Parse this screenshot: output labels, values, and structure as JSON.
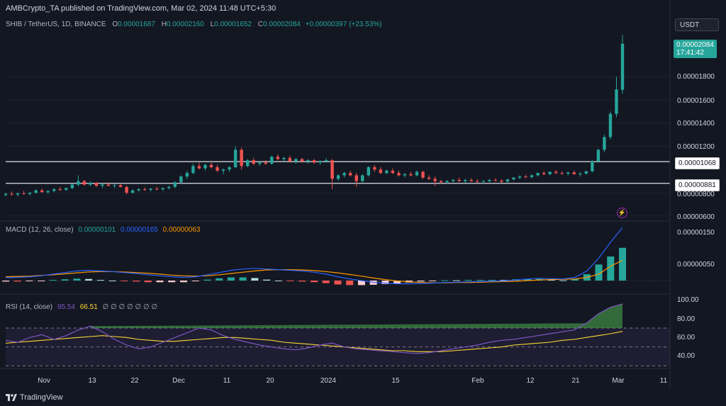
{
  "header": {
    "published": "AMBCrypto_TA published on TradingView.com, Mar 02, 2024 11:48 UTC+5:30",
    "symbol": "SHIB / TetherUS, 1D, BINANCE",
    "o_label": "O",
    "o": "0.00001687",
    "h_label": "H",
    "h": "0.00002160",
    "l_label": "L",
    "l": "0.00001652",
    "c_label": "C",
    "c": "0.00002084",
    "change": "+0.00000397 (+23.53%)",
    "currency": "USDT"
  },
  "price_tag": {
    "price": "0.00002084",
    "countdown": "17:41:42"
  },
  "levels": {
    "upper": "0.00001068",
    "lower": "0.00000881"
  },
  "macd_legend": {
    "name": "MACD (12, 26, close)",
    "v1": "0.00000101",
    "v2": "0.00000165",
    "v3": "0.00000063"
  },
  "rsi_legend": {
    "name": "RSI (14, close)",
    "v1": "95.54",
    "v2": "66.51",
    "rest": "∅ ∅ ∅ ∅ ∅ ∅ ∅"
  },
  "brand": "TradingView",
  "colors": {
    "up": "#26a69a",
    "down": "#ef5350",
    "bg": "#131722",
    "macd": "#2962ff",
    "signal": "#ff9800",
    "rsi": "#7e57c2",
    "rsi_ma": "#fdd835"
  },
  "chart_data": {
    "type": "candlestick",
    "price_ticks": [
      "0.00001800",
      "0.00001600",
      "0.00001400",
      "0.00001200",
      "0.00000800",
      "0.00000600"
    ],
    "price_tick_values": [
      1.8e-05,
      1.6e-05,
      1.4e-05,
      1.2e-05,
      8e-06,
      6e-06
    ],
    "macd_ticks": [
      "0.00000150",
      "0.00000050"
    ],
    "macd_tick_values": [
      1.5e-06,
      5e-07
    ],
    "rsi_ticks": [
      "100.00",
      "80.00",
      "60.00",
      "40.00"
    ],
    "rsi_tick_values": [
      100,
      80,
      60,
      40
    ],
    "x_ticks": [
      "Nov",
      "13",
      "22",
      "Dec",
      "11",
      "20",
      "2024",
      "15",
      "Feb",
      "12",
      "21",
      "Mar",
      "11"
    ],
    "candles": [
      [
        "0.00000780",
        "0.00000800",
        "0.00000770",
        "0.00000790"
      ],
      [
        "0.00000790",
        "0.00000810",
        "0.00000775",
        "0.00000785"
      ],
      [
        "0.00000785",
        "0.00000800",
        "0.00000770",
        "0.00000795"
      ],
      [
        "0.00000795",
        "0.00000815",
        "0.00000785",
        "0.00000790"
      ],
      [
        "0.00000790",
        "0.00000805",
        "0.00000775",
        "0.00000800"
      ],
      [
        "0.00000800",
        "0.00000830",
        "0.00000790",
        "0.00000820"
      ],
      [
        "0.00000820",
        "0.00000835",
        "0.00000800",
        "0.00000805"
      ],
      [
        "0.00000805",
        "0.00000820",
        "0.00000790",
        "0.00000815"
      ],
      [
        "0.00000815",
        "0.00000840",
        "0.00000805",
        "0.00000830"
      ],
      [
        "0.00000830",
        "0.00000850",
        "0.00000815",
        "0.00000825"
      ],
      [
        "0.00000825",
        "0.00000845",
        "0.00000815",
        "0.00000840"
      ],
      [
        "0.00000840",
        "0.00000880",
        "0.00000830",
        "0.00000870"
      ],
      [
        "0.00000870",
        "0.00000950",
        "0.00000855",
        "0.00000900"
      ],
      [
        "0.00000900",
        "0.00000910",
        "0.00000860",
        "0.00000870"
      ],
      [
        "0.00000870",
        "0.00000900",
        "0.00000855",
        "0.00000885"
      ],
      [
        "0.00000885",
        "0.00000895",
        "0.00000850",
        "0.00000860"
      ],
      [
        "0.00000860",
        "0.00000880",
        "0.00000840",
        "0.00000870"
      ],
      [
        "0.00000870",
        "0.00000890",
        "0.00000855",
        "0.00000860"
      ],
      [
        "0.00000860",
        "0.00000875",
        "0.00000840",
        "0.00000865"
      ],
      [
        "0.00000865",
        "0.00000880",
        "0.00000845",
        "0.00000850"
      ],
      [
        "0.00000850",
        "0.00000860",
        "0.00000785",
        "0.00000800"
      ],
      [
        "0.00000800",
        "0.00000830",
        "0.00000790",
        "0.00000820"
      ],
      [
        "0.00000820",
        "0.00000840",
        "0.00000810",
        "0.00000830"
      ],
      [
        "0.00000830",
        "0.00000845",
        "0.00000815",
        "0.00000825"
      ],
      [
        "0.00000825",
        "0.00000840",
        "0.00000810",
        "0.00000835"
      ],
      [
        "0.00000835",
        "0.00000850",
        "0.00000820",
        "0.00000830"
      ],
      [
        "0.00000830",
        "0.00000845",
        "0.00000815",
        "0.00000840"
      ],
      [
        "0.00000840",
        "0.00000860",
        "0.00000830",
        "0.00000850"
      ],
      [
        "0.00000850",
        "0.00000900",
        "0.00000840",
        "0.00000890"
      ],
      [
        "0.00000890",
        "0.00000950",
        "0.00000880",
        "0.00000940"
      ],
      [
        "0.00000940",
        "0.00000990",
        "0.00000920",
        "0.00000970"
      ],
      [
        "0.00000970",
        "0.00001050",
        "0.00000960",
        "0.00001030"
      ],
      [
        "0.00001030",
        "0.00001060",
        "0.00001000",
        "0.00001010"
      ],
      [
        "0.00001010",
        "0.00001050",
        "0.00000990",
        "0.00001040"
      ],
      [
        "0.00001040",
        "0.00001060",
        "0.00001010",
        "0.00001020"
      ],
      [
        "0.00001020",
        "0.00001040",
        "0.00000980",
        "0.00000990"
      ],
      [
        "0.00000990",
        "0.00001010",
        "0.00000960",
        "0.00001000"
      ],
      [
        "0.00001000",
        "0.00001030",
        "0.00000980",
        "0.00001020"
      ],
      [
        "0.00001020",
        "0.00001200",
        "0.00001010",
        "0.00001170"
      ],
      [
        "0.00001170",
        "0.00001190",
        "0.00001000",
        "0.00001030"
      ],
      [
        "0.00001030",
        "0.00001090",
        "0.00001020",
        "0.00001080"
      ],
      [
        "0.00001080",
        "0.00001100",
        "0.00001040",
        "0.00001050"
      ],
      [
        "0.00001050",
        "0.00001070",
        "0.00001030",
        "0.00001060"
      ],
      [
        "0.00001060",
        "0.00001080",
        "0.00001040",
        "0.00001050"
      ],
      [
        "0.00001050",
        "0.00001120",
        "0.00001040",
        "0.00001110"
      ],
      [
        "0.00001110",
        "0.00001130",
        "0.00001080",
        "0.00001090"
      ],
      [
        "0.00001090",
        "0.00001110",
        "0.00001070",
        "0.00001100"
      ],
      [
        "0.00001100",
        "0.00001120",
        "0.00001060",
        "0.00001070"
      ],
      [
        "0.00001070",
        "0.00001100",
        "0.00001050",
        "0.00001090"
      ],
      [
        "0.00001090",
        "0.00001100",
        "0.00001060",
        "0.00001070"
      ],
      [
        "0.00001070",
        "0.00001090",
        "0.00001050",
        "0.00001080"
      ],
      [
        "0.00001080",
        "0.00001090",
        "0.00001050",
        "0.00001060"
      ],
      [
        "0.00001060",
        "0.00001080",
        "0.00001040",
        "0.00001070"
      ],
      [
        "0.00001070",
        "0.00001100",
        "0.00001060",
        "0.00001080"
      ],
      [
        "0.00001080",
        "0.00001090",
        "0.00000830",
        "0.00000920"
      ],
      [
        "0.00000920",
        "0.00000960",
        "0.00000900",
        "0.00000950"
      ],
      [
        "0.00000950",
        "0.00000980",
        "0.00000930",
        "0.00000970"
      ],
      [
        "0.00000970",
        "0.00000990",
        "0.00000940",
        "0.00000950"
      ],
      [
        "0.00000950",
        "0.00000970",
        "0.00000850",
        "0.00000900"
      ],
      [
        "0.00000900",
        "0.00000960",
        "0.00000890",
        "0.00000950"
      ],
      [
        "0.00000950",
        "0.00001030",
        "0.00000940",
        "0.00001020"
      ],
      [
        "0.00001020",
        "0.00001040",
        "0.00000980",
        "0.00001000"
      ],
      [
        "0.00001000",
        "0.00001020",
        "0.00000960",
        "0.00000970"
      ],
      [
        "0.00000970",
        "0.00001000",
        "0.00000960",
        "0.00000990"
      ],
      [
        "0.00000990",
        "0.00001010",
        "0.00000960",
        "0.00000970"
      ],
      [
        "0.00000970",
        "0.00000990",
        "0.00000940",
        "0.00000950"
      ],
      [
        "0.00000950",
        "0.00000970",
        "0.00000930",
        "0.00000960"
      ],
      [
        "0.00000960",
        "0.00000980",
        "0.00000940",
        "0.00000950"
      ],
      [
        "0.00000950",
        "0.00000990",
        "0.00000940",
        "0.00000980"
      ],
      [
        "0.00000980",
        "0.00000990",
        "0.00000920",
        "0.00000930"
      ],
      [
        "0.00000930",
        "0.00000950",
        "0.00000910",
        "0.00000920"
      ],
      [
        "0.00000920",
        "0.00000940",
        "0.00000860",
        "0.00000900"
      ],
      [
        "0.00000900",
        "0.00000910",
        "0.00000880",
        "0.00000890"
      ],
      [
        "0.00000890",
        "0.00000910",
        "0.00000880",
        "0.00000900"
      ],
      [
        "0.00000900",
        "0.00000920",
        "0.00000890",
        "0.00000910"
      ],
      [
        "0.00000910",
        "0.00000930",
        "0.00000895",
        "0.00000900"
      ],
      [
        "0.00000900",
        "0.00000920",
        "0.00000885",
        "0.00000910"
      ],
      [
        "0.00000910",
        "0.00000925",
        "0.00000895",
        "0.00000900"
      ],
      [
        "0.00000900",
        "0.00000915",
        "0.00000885",
        "0.00000895"
      ],
      [
        "0.00000895",
        "0.00000910",
        "0.00000880",
        "0.00000900"
      ],
      [
        "0.00000900",
        "0.00000920",
        "0.00000890",
        "0.00000910"
      ],
      [
        "0.00000910",
        "0.00000925",
        "0.00000895",
        "0.00000905"
      ],
      [
        "0.00000905",
        "0.00000915",
        "0.00000885",
        "0.00000895"
      ],
      [
        "0.00000895",
        "0.00000920",
        "0.00000890",
        "0.00000915"
      ],
      [
        "0.00000915",
        "0.00000935",
        "0.00000905",
        "0.00000930"
      ],
      [
        "0.00000930",
        "0.00000950",
        "0.00000915",
        "0.00000940"
      ],
      [
        "0.00000940",
        "0.00000955",
        "0.00000925",
        "0.00000935"
      ],
      [
        "0.00000935",
        "0.00000960",
        "0.00000925",
        "0.00000950"
      ],
      [
        "0.00000950",
        "0.00000975",
        "0.00000940",
        "0.00000970"
      ],
      [
        "0.00000970",
        "0.00000985",
        "0.00000950",
        "0.00000960"
      ],
      [
        "0.00000960",
        "0.00000985",
        "0.00000950",
        "0.00000980"
      ],
      [
        "0.00000980",
        "0.00000995",
        "0.00000960",
        "0.00000970"
      ],
      [
        "0.00000970",
        "0.00000985",
        "0.00000955",
        "0.00000965"
      ],
      [
        "0.00000965",
        "0.00000980",
        "0.00000950",
        "0.00000975"
      ],
      [
        "0.00000975",
        "0.00000990",
        "0.00000955",
        "0.00000960"
      ],
      [
        "0.00000960",
        "0.00000975",
        "0.00000940",
        "0.00000965"
      ],
      [
        "0.00000965",
        "0.00000990",
        "0.00000955",
        "0.00000985"
      ],
      [
        "0.00000985",
        "0.00001080",
        "0.00000975",
        "0.00001070"
      ],
      [
        "0.00001070",
        "0.00001180",
        "0.00001060",
        "0.00001170"
      ],
      [
        "0.00001170",
        "0.00001300",
        "0.00001150",
        "0.00001280"
      ],
      [
        "0.00001280",
        "0.00001500",
        "0.00001260",
        "0.00001480"
      ],
      [
        "0.00001480",
        "0.00001800",
        "0.00001450",
        "0.00001690"
      ],
      [
        "0.00001687",
        "0.00002160",
        "0.00001652",
        "0.00002084"
      ]
    ],
    "macd": {
      "macd_line": [
        "0.00000009",
        "0.00000010",
        "0.00000012",
        "0.00000015",
        "0.00000020",
        "0.00000025",
        "0.00000030",
        "0.00000032",
        "0.00000030",
        "0.00000028",
        "0.00000025",
        "0.00000022",
        "0.00000018",
        "0.00000015",
        "0.00000012",
        "0.00000010",
        "0.00000012",
        "0.00000018",
        "0.00000025",
        "0.00000032",
        "0.00000036",
        "0.00000038",
        "0.00000036",
        "0.00000034",
        "0.00000032",
        "0.00000030",
        "0.00000026",
        "0.00000020",
        "0.00000012",
        "0.00000005",
        "0.00000000",
        "-0.00000005",
        "-0.00000008",
        "-0.00000010",
        "-0.00000010",
        "-0.00000009",
        "-0.00000008",
        "-0.00000006",
        "-0.00000005",
        "-0.00000004",
        "-0.00000003",
        "-0.00000002",
        "-0.00000001",
        "0.00000002",
        "0.00000005",
        "0.00000007",
        "0.00000006",
        "0.00000005",
        "0.00000010",
        "0.00000030",
        "0.00000070",
        "0.00000120",
        "0.00000165"
      ],
      "signal_line": [
        "0.00000012",
        "0.00000013",
        "0.00000014",
        "0.00000016",
        "0.00000018",
        "0.00000021",
        "0.00000024",
        "0.00000027",
        "0.00000028",
        "0.00000028",
        "0.00000027",
        "0.00000025",
        "0.00000023",
        "0.00000020",
        "0.00000017",
        "0.00000015",
        "0.00000014",
        "0.00000015",
        "0.00000018",
        "0.00000022",
        "0.00000026",
        "0.00000030",
        "0.00000033",
        "0.00000034",
        "0.00000034",
        "0.00000033",
        "0.00000031",
        "0.00000028",
        "0.00000024",
        "0.00000019",
        "0.00000014",
        "0.00000008",
        "0.00000003",
        "-0.00000001",
        "-0.00000004",
        "-0.00000006",
        "-0.00000007",
        "-0.00000007",
        "-0.00000006",
        "-0.00000006",
        "-0.00000005",
        "-0.00000004",
        "-0.00000003",
        "-0.00000002",
        "0.00000000",
        "0.00000002",
        "0.00000003",
        "0.00000004",
        "0.00000005",
        "0.00000010",
        "0.00000020",
        "0.00000045",
        "0.00000063"
      ],
      "histogram": [
        "0.00000101"
      ]
    },
    "rsi": {
      "rsi_line": [
        "57",
        "55",
        "60",
        "63",
        "58",
        "62",
        "68",
        "72",
        "66",
        "58",
        "52",
        "48",
        "50",
        "55",
        "60",
        "65",
        "70",
        "68",
        "62",
        "58",
        "55",
        "52",
        "50",
        "48",
        "47",
        "49",
        "52",
        "54",
        "50",
        "48",
        "47",
        "46",
        "45",
        "44",
        "43",
        "44",
        "46",
        "48",
        "50",
        "52",
        "55",
        "57",
        "58",
        "60",
        "62",
        "64",
        "66",
        "68",
        "75",
        "85",
        "92",
        "95.54"
      ],
      "ma_line": [
        "54",
        "55",
        "56",
        "57",
        "58",
        "59",
        "60",
        "61",
        "62",
        "61",
        "60",
        "58",
        "57",
        "56",
        "56",
        "57",
        "58",
        "59",
        "60",
        "60",
        "59",
        "58",
        "57",
        "55",
        "54",
        "53",
        "52",
        "51",
        "50",
        "49",
        "48",
        "47",
        "46",
        "46",
        "45",
        "45",
        "45",
        "46",
        "47",
        "48",
        "49",
        "50",
        "52",
        "53",
        "54",
        "55",
        "57",
        "58",
        "60",
        "62",
        "64",
        "66.51"
      ]
    }
  }
}
